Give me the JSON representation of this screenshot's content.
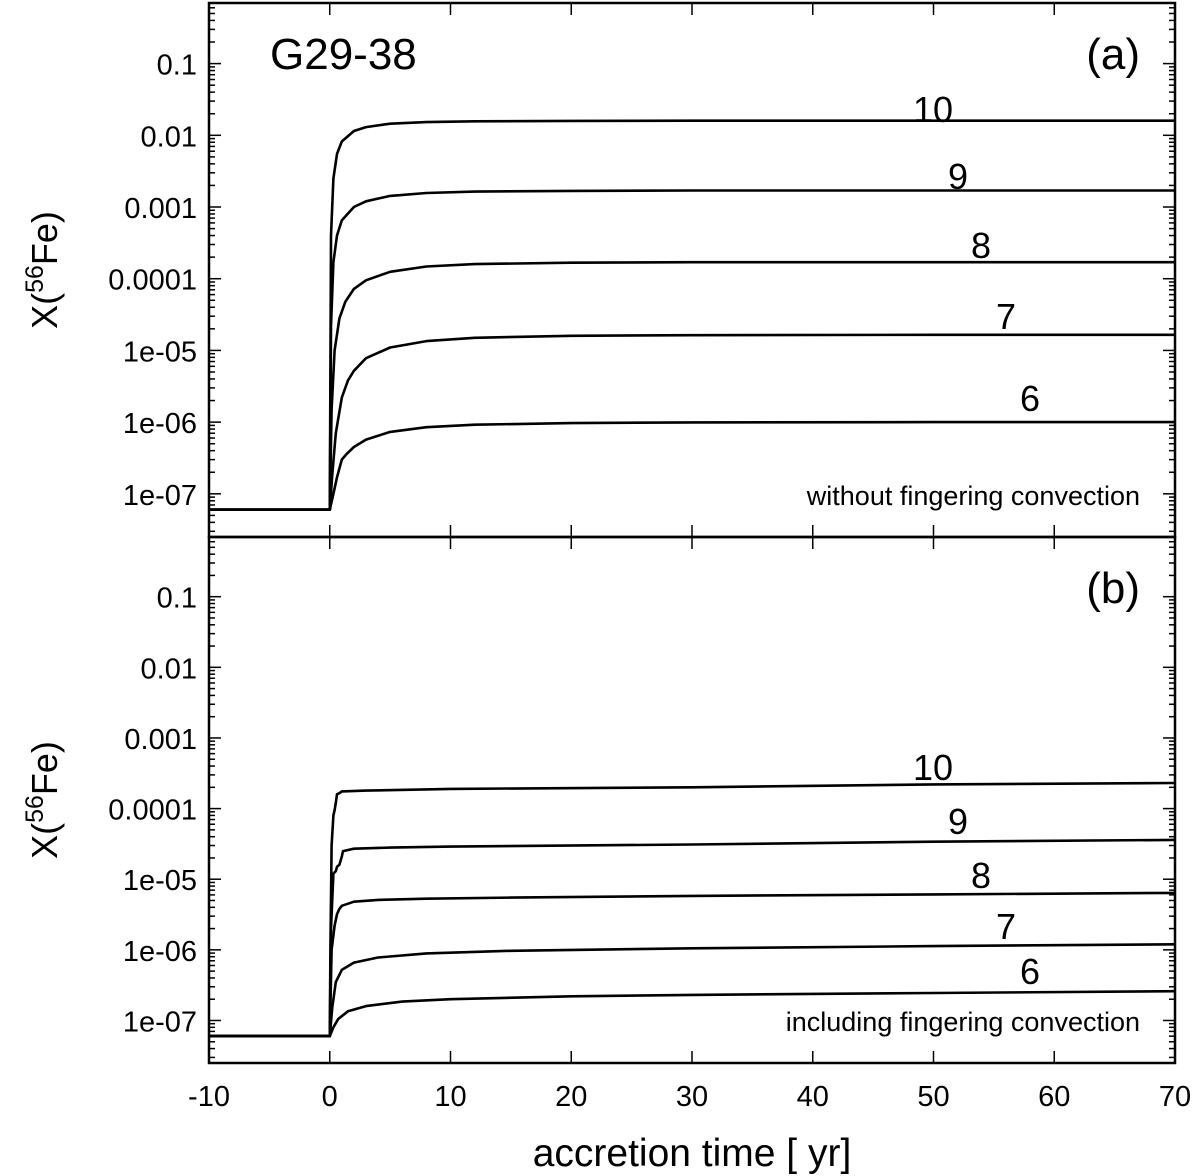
{
  "chart_data": [
    {
      "type": "line",
      "panel_label": "(a)",
      "title": "G29-38",
      "annotation": "without fingering convection",
      "ylabel_main": "X(",
      "ylabel_sup": "56",
      "ylabel_rest": "Fe)",
      "xlim": [
        -10,
        70
      ],
      "yscale": "log",
      "ylim": [
        2.5e-08,
        0.7
      ],
      "yticks": [
        1e-07,
        1e-06,
        1e-05,
        0.0001,
        0.001,
        0.01,
        0.1
      ],
      "ytick_labels": [
        "1e-07",
        "1e-06",
        "1e-05",
        "0.0001",
        "0.001",
        "0.01",
        "0.1"
      ],
      "initial_value": 6e-08,
      "series": [
        {
          "name": "10",
          "final": 0.016,
          "x": [
            0,
            0.1,
            0.3,
            0.6,
            1,
            2,
            3,
            5,
            8,
            12,
            20,
            30,
            50,
            70
          ],
          "y": [
            6e-08,
            0.0004,
            0.0025,
            0.0055,
            0.0082,
            0.0115,
            0.013,
            0.0145,
            0.0153,
            0.0157,
            0.0159,
            0.016,
            0.016,
            0.016
          ]
        },
        {
          "name": "9",
          "final": 0.0017,
          "x": [
            0,
            0.1,
            0.3,
            0.6,
            1,
            2,
            3,
            5,
            8,
            12,
            20,
            30,
            50,
            70
          ],
          "y": [
            6e-08,
            2.2e-05,
            0.00017,
            0.0004,
            0.00065,
            0.001,
            0.0012,
            0.00143,
            0.00157,
            0.00164,
            0.00168,
            0.0017,
            0.0017,
            0.0017
          ]
        },
        {
          "name": "8",
          "final": 0.00017,
          "x": [
            0,
            0.15,
            0.4,
            0.8,
            1.3,
            2,
            3,
            5,
            8,
            12,
            20,
            30,
            50,
            70
          ],
          "y": [
            6e-08,
            1.5e-06,
            1e-05,
            2.8e-05,
            4.8e-05,
            7.2e-05,
            9.5e-05,
            0.000125,
            0.000148,
            0.00016,
            0.000167,
            0.00017,
            0.00017,
            0.00017
          ]
        },
        {
          "name": "7",
          "final": 1.65e-05,
          "x": [
            0,
            0.2,
            0.5,
            1,
            1.5,
            2,
            3,
            5,
            8,
            12,
            20,
            30,
            50,
            70
          ],
          "y": [
            6e-08,
            1.8e-07,
            7e-07,
            2.2e-06,
            3.8e-06,
            5.2e-06,
            7.8e-06,
            1.1e-05,
            1.35e-05,
            1.5e-05,
            1.6e-05,
            1.63e-05,
            1.65e-05,
            1.65e-05
          ]
        },
        {
          "name": "6",
          "final": 1e-06,
          "x": [
            0,
            0.3,
            0.6,
            1,
            1.4,
            2,
            3,
            5,
            8,
            12,
            20,
            30,
            50,
            70
          ],
          "y": [
            6e-08,
            1e-07,
            1.7e-07,
            3e-07,
            3.6e-07,
            4.5e-07,
            5.7e-07,
            7.3e-07,
            8.5e-07,
            9.2e-07,
            9.7e-07,
            9.9e-07,
            1e-06,
            1e-06
          ]
        }
      ]
    },
    {
      "type": "line",
      "panel_label": "(b)",
      "annotation": "including fingering convection",
      "ylabel_main": "X(",
      "ylabel_sup": "56",
      "ylabel_rest": "Fe)",
      "xlabel": "accretion time [ yr]",
      "xlim": [
        -10,
        70
      ],
      "xticks": [
        -10,
        0,
        10,
        20,
        30,
        40,
        50,
        60,
        70
      ],
      "xtick_labels": [
        "-10",
        "0",
        "10",
        "20",
        "30",
        "40",
        "50",
        "60",
        "70"
      ],
      "yscale": "log",
      "ylim": [
        2.5e-08,
        0.7
      ],
      "yticks": [
        1e-07,
        1e-06,
        1e-05,
        0.0001,
        0.001,
        0.01,
        0.1
      ],
      "ytick_labels": [
        "1e-07",
        "1e-06",
        "1e-05",
        "0.0001",
        "0.001",
        "0.01",
        "0.1"
      ],
      "initial_value": 6e-08,
      "series": [
        {
          "name": "10",
          "final": 0.00023,
          "x": [
            0,
            0.05,
            0.15,
            0.3,
            0.4,
            0.5,
            0.6,
            0.8,
            1,
            3,
            10,
            30,
            50,
            70
          ],
          "y": [
            6e-08,
            1e-06,
            3e-05,
            8e-05,
            9.5e-05,
            0.00012,
            0.00016,
            0.000165,
            0.000175,
            0.00018,
            0.00019,
            0.0002,
            0.00022,
            0.00023
          ]
        },
        {
          "name": "9",
          "final": 3.6e-05,
          "x": [
            0,
            0.1,
            0.3,
            0.5,
            0.6,
            0.8,
            1,
            1.1,
            2,
            5,
            10,
            30,
            50,
            70
          ],
          "y": [
            6e-08,
            2e-06,
            1.2e-05,
            1.3e-05,
            1.5e-05,
            1.6e-05,
            2.1e-05,
            2.5e-05,
            2.7e-05,
            2.8e-05,
            2.9e-05,
            3.1e-05,
            3.4e-05,
            3.6e-05
          ]
        },
        {
          "name": "8",
          "final": 6.4e-06,
          "x": [
            0,
            0.15,
            0.4,
            0.6,
            0.8,
            1,
            2,
            4,
            8,
            15,
            30,
            50,
            70
          ],
          "y": [
            6e-08,
            1e-06,
            2.2e-06,
            3.2e-06,
            3.8e-06,
            4.2e-06,
            4.8e-06,
            5.1e-06,
            5.3e-06,
            5.5e-06,
            5.8e-06,
            6.1e-06,
            6.4e-06
          ]
        },
        {
          "name": "7",
          "final": 1.2e-06,
          "x": [
            0,
            0.2,
            0.5,
            1,
            2,
            4,
            8,
            15,
            30,
            50,
            70
          ],
          "y": [
            6e-08,
            1.5e-07,
            3.5e-07,
            5.2e-07,
            6.6e-07,
            7.8e-07,
            8.9e-07,
            9.7e-07,
            1.05e-06,
            1.13e-06,
            1.2e-06
          ]
        },
        {
          "name": "6",
          "final": 2.6e-07,
          "x": [
            0,
            0.3,
            0.7,
            1.5,
            3,
            6,
            10,
            20,
            30,
            50,
            70
          ],
          "y": [
            6e-08,
            8e-08,
            1.05e-07,
            1.35e-07,
            1.6e-07,
            1.85e-07,
            2e-07,
            2.2e-07,
            2.3e-07,
            2.45e-07,
            2.6e-07
          ]
        }
      ]
    }
  ]
}
